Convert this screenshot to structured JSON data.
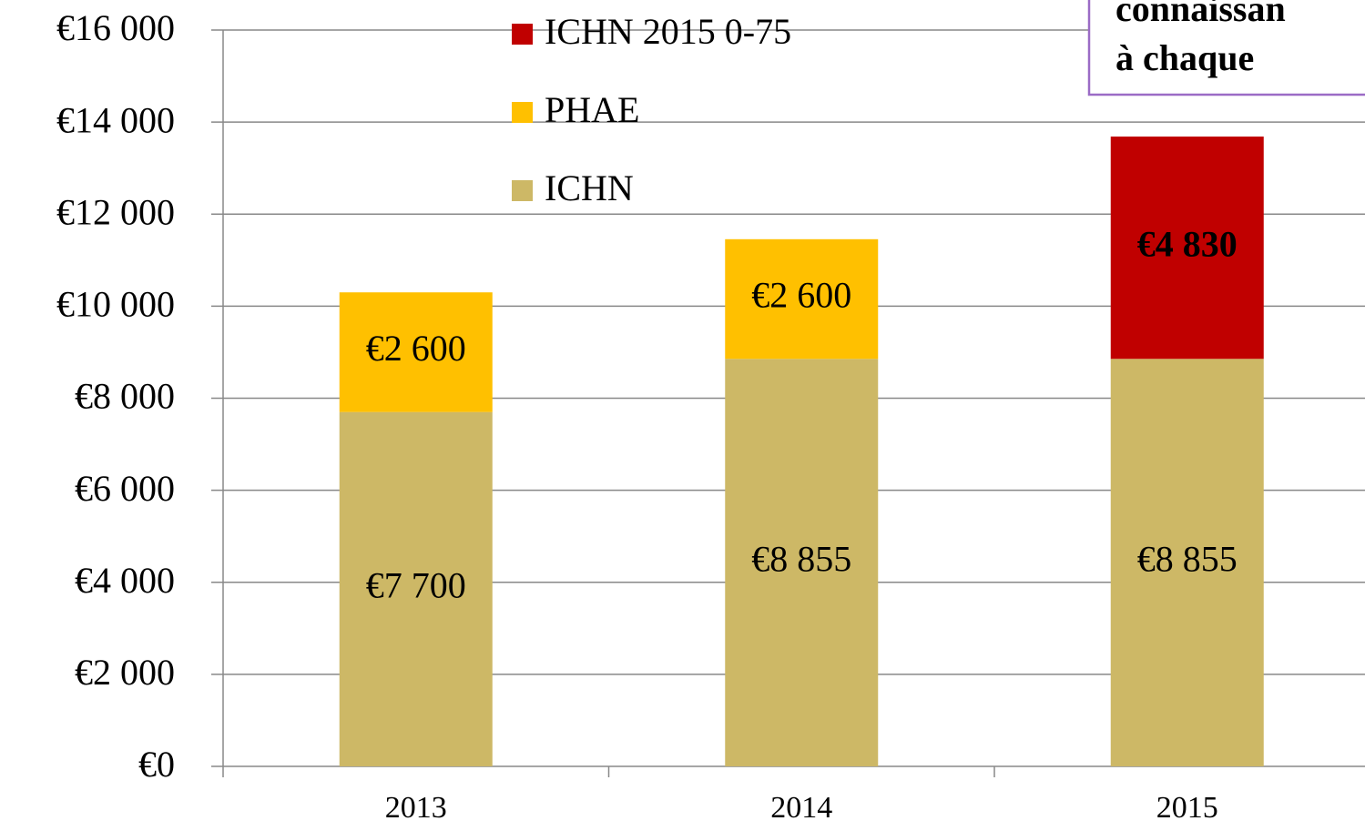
{
  "chart_data": {
    "type": "stacked_bar",
    "categories": [
      "2013",
      "2014",
      "2015"
    ],
    "series": [
      {
        "name": "ICHN",
        "color": "#CDB866",
        "values": [
          7700,
          8855,
          8855
        ],
        "value_labels": [
          "€7 700",
          "€8 855",
          "€8 855"
        ]
      },
      {
        "name": "PHAE",
        "color": "#FFC000",
        "values": [
          2600,
          2600,
          null
        ],
        "value_labels": [
          "€2 600",
          "€2 600",
          null
        ]
      },
      {
        "name": "ICHN 2015 0-75",
        "color": "#C00000",
        "values": [
          null,
          null,
          4830
        ],
        "value_labels": [
          null,
          null,
          "€4 830"
        ],
        "value_label_bold": true
      }
    ],
    "ylim": [
      0,
      16000
    ],
    "yticks": [
      {
        "value": 0,
        "label": "€0"
      },
      {
        "value": 2000,
        "label": "€2 000"
      },
      {
        "value": 4000,
        "label": "€4 000"
      },
      {
        "value": 6000,
        "label": "€6 000"
      },
      {
        "value": 8000,
        "label": "€8 000"
      },
      {
        "value": 10000,
        "label": "€10 000"
      },
      {
        "value": 12000,
        "label": "€12 000"
      },
      {
        "value": 14000,
        "label": "€14 000"
      },
      {
        "value": 16000,
        "label": "€16 000"
      }
    ],
    "grid": true,
    "annotation": {
      "lines": [
        "connaissan",
        "à chaque"
      ],
      "color": "#C00000",
      "border": "#9B6BC6"
    }
  }
}
